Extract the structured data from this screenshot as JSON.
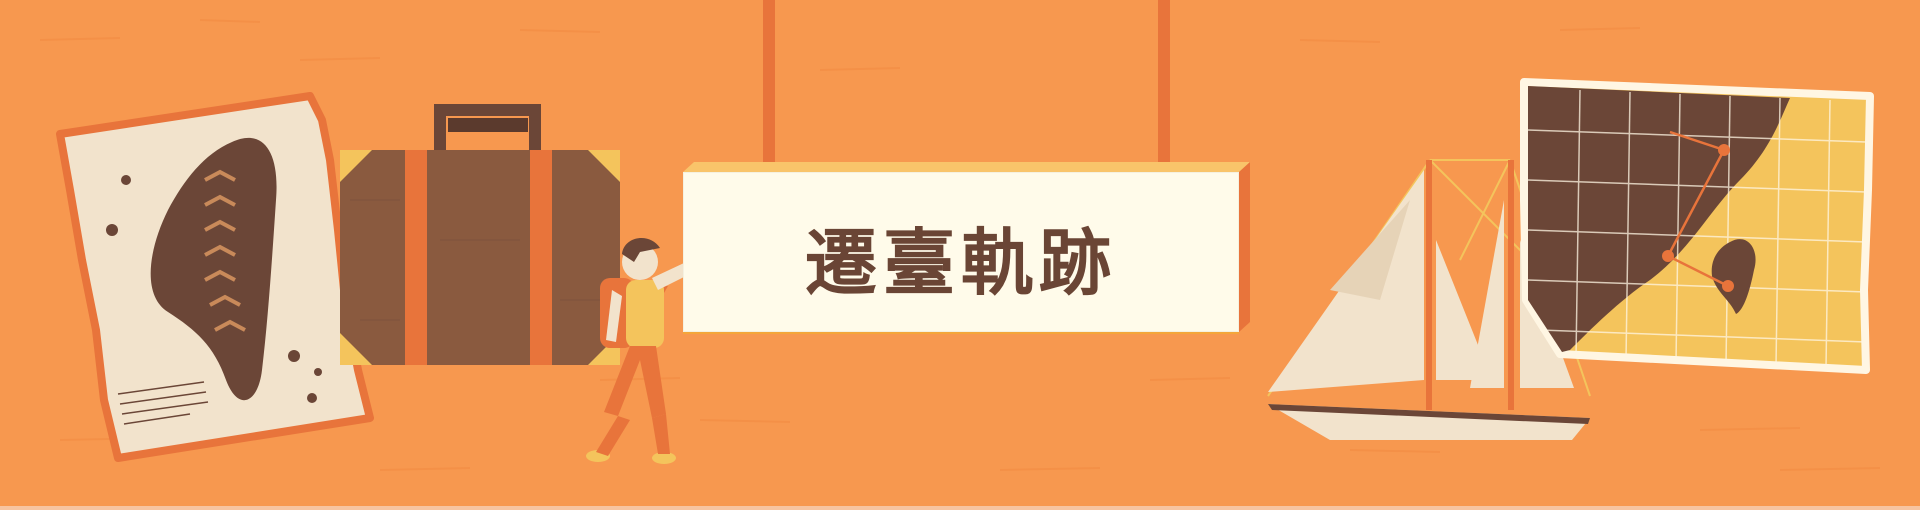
{
  "banner": {
    "title": "遷臺軌跡",
    "icons": {
      "left_map": "taiwan-map-icon",
      "suitcase": "suitcase-icon",
      "traveler": "traveler-icon",
      "ship": "sailing-ship-icon",
      "right_map": "grid-map-icon"
    }
  },
  "colors": {
    "background": "#f7984f",
    "sign_face": "#fffbea",
    "sign_edge": "#f4a63a",
    "brown": "#6b4637",
    "orange_dark": "#e8743b",
    "paper": "#f2e3cc",
    "yellow": "#f4c45c"
  }
}
